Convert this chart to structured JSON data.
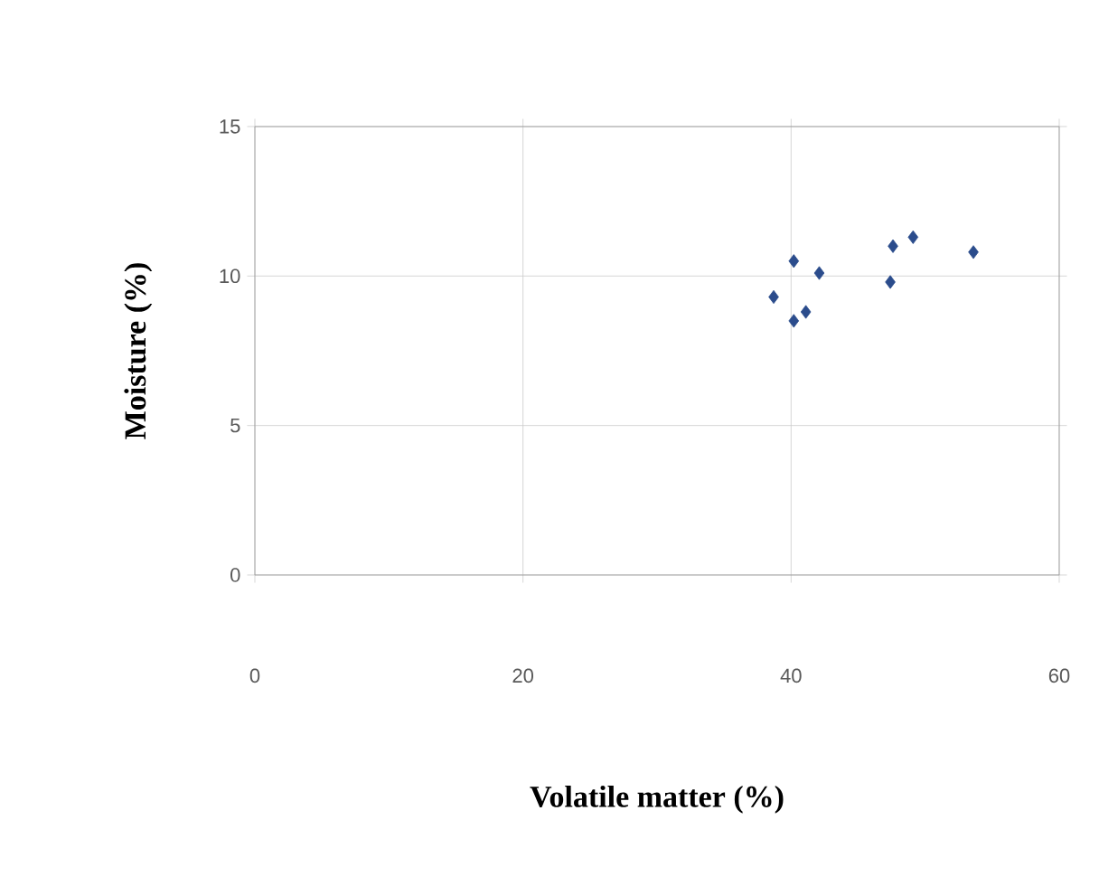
{
  "chart_data": {
    "type": "scatter",
    "xlabel": "Volatile matter (%)",
    "ylabel": "Moisture (%)",
    "x": [
      40.2,
      42.1,
      38.7,
      40.2,
      41.1,
      47.4,
      47.6,
      49.1,
      53.6
    ],
    "values": [
      10.5,
      10.1,
      9.3,
      8.5,
      8.8,
      9.8,
      11.0,
      11.3,
      10.8
    ],
    "color": "#2b4c8c",
    "marker": "diamond",
    "grid": true,
    "xlim": [
      0,
      60
    ],
    "xticks": [
      0,
      20,
      40,
      60
    ],
    "ylim": [
      0,
      15
    ],
    "yticks": [
      0,
      5,
      10,
      15
    ]
  }
}
